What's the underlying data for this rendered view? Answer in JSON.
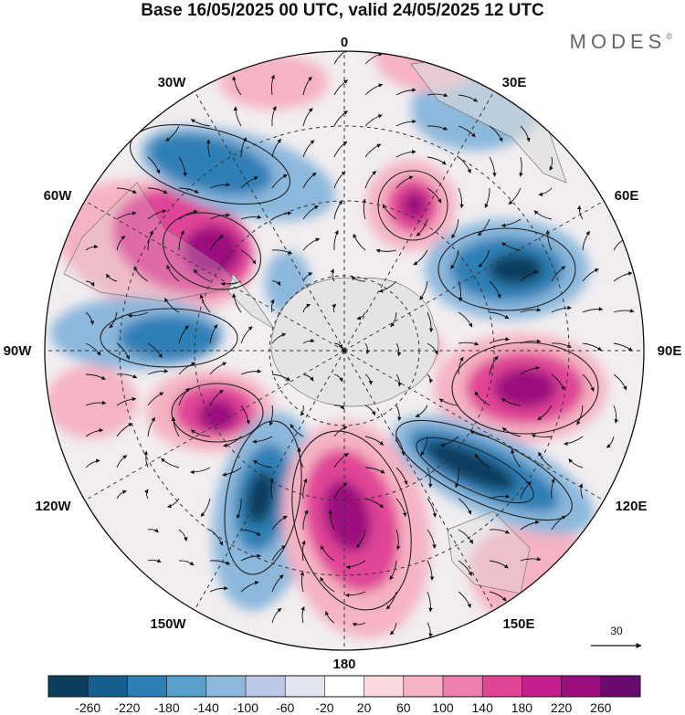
{
  "title": "Base 16/05/2025 00 UTC, valid 24/05/2025 12 UTC",
  "brand": "MODES",
  "brand_mark": "©",
  "longitude_labels": {
    "lon_0": "0",
    "lon_30e": "30E",
    "lon_60e": "60E",
    "lon_90e": "90E",
    "lon_120e": "120E",
    "lon_150e": "150E",
    "lon_180": "180",
    "lon_150w": "150W",
    "lon_120w": "120W",
    "lon_90w": "90W",
    "lon_60w": "60W",
    "lon_30w": "30W"
  },
  "reference_vector": {
    "label": "30",
    "arrow": "right-arrow-icon"
  },
  "colorbar": {
    "labels": [
      "-260",
      "-220",
      "-180",
      "-140",
      "-100",
      "-60",
      "-20",
      "20",
      "60",
      "100",
      "140",
      "180",
      "220",
      "260"
    ],
    "colors": [
      "#0c3e5e",
      "#165f8f",
      "#2e7fb5",
      "#5b9fcb",
      "#8cb8dc",
      "#bcc8e4",
      "#e2e4f0",
      "#ffffff",
      "#fbd9df",
      "#f5b3c3",
      "#ec7fab",
      "#e04596",
      "#c41f8c",
      "#9c0d7e",
      "#6b0a6e"
    ]
  },
  "anomaly_colors": {
    "strong_negative": "#0c3e5e",
    "negative": "#2e7fb5",
    "weak_negative": "#8cb8dc",
    "weak_positive": "#f5b3c3",
    "positive": "#e04596",
    "strong_positive": "#9c0d7e"
  }
}
